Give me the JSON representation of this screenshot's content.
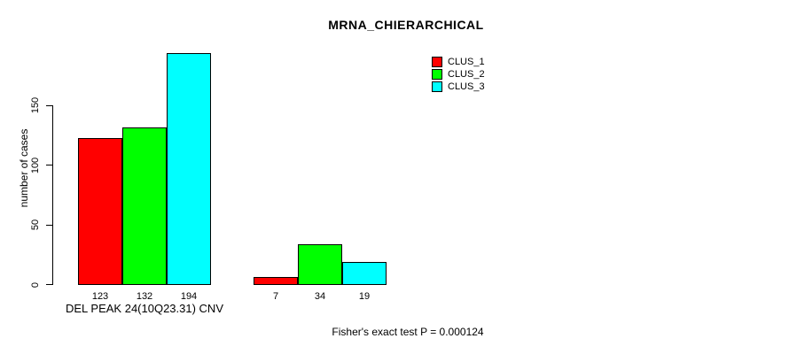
{
  "chart_data": {
    "type": "bar",
    "title": "MRNA_CHIERARCHICAL",
    "ylabel": "number of cases",
    "xlabel": "DEL PEAK 24(10Q23.31) CNV",
    "annotation": "Fisher's exact test P = 0.000124",
    "categories": [
      "DEL PEAK 24(10Q23.31) CNV",
      ""
    ],
    "series": [
      {
        "name": "CLUS_1",
        "color": "#FF0000",
        "values": [
          123,
          7
        ]
      },
      {
        "name": "CLUS_2",
        "color": "#00FF00",
        "values": [
          132,
          34
        ]
      },
      {
        "name": "CLUS_3",
        "color": "#00FFFF",
        "values": [
          194,
          19
        ]
      }
    ],
    "y_ticks": [
      0,
      50,
      100,
      150
    ],
    "ylim": [
      0,
      150
    ],
    "grid": false,
    "legend_position": "top-right-inside",
    "bar_value_labels_shown": true,
    "bar_border_color": "#000000",
    "background_color": "#FFFFFF"
  }
}
